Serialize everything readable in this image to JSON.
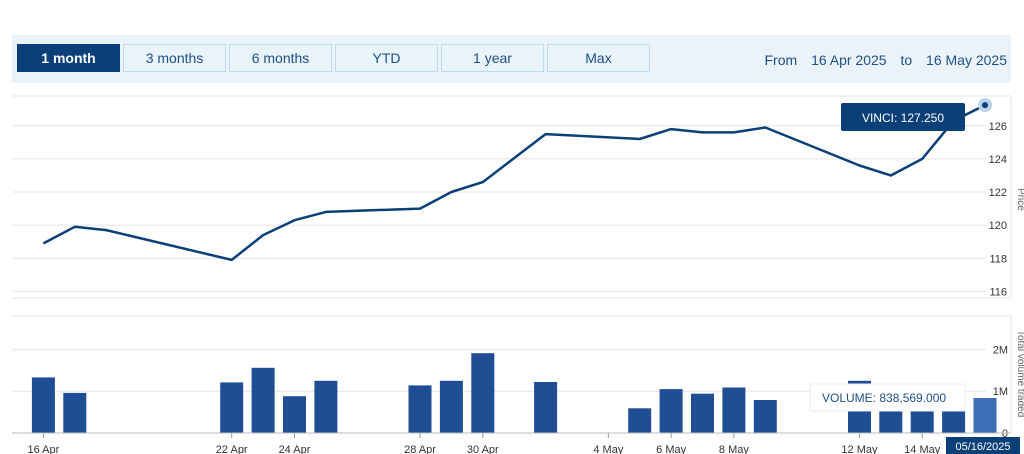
{
  "toolbar": {
    "ranges": [
      "1 month",
      "3 months",
      "6 months",
      "YTD",
      "1 year",
      "Max"
    ],
    "active_range": "1 month",
    "from_label": "From",
    "from_date": "16 Apr 2025",
    "to_label": "to",
    "to_date": "16 May 2025"
  },
  "colors": {
    "line": "#0b3f78",
    "bar": "#1f4e94",
    "bar_highlight": "#3d6fb8",
    "accent_dark": "#0b3f78"
  },
  "chart_data": {
    "type": "line",
    "price_series": {
      "name": "VINCI",
      "dates": [
        "2025-04-16",
        "2025-04-17",
        "2025-04-18",
        "2025-04-22",
        "2025-04-23",
        "2025-04-24",
        "2025-04-25",
        "2025-04-28",
        "2025-04-29",
        "2025-04-30",
        "2025-05-02",
        "2025-05-05",
        "2025-05-06",
        "2025-05-07",
        "2025-05-08",
        "2025-05-09",
        "2025-05-12",
        "2025-05-13",
        "2025-05-14",
        "2025-05-15",
        "2025-05-16"
      ],
      "values": [
        118.9,
        119.9,
        119.7,
        117.9,
        119.4,
        120.3,
        120.8,
        121.0,
        122.0,
        122.6,
        125.5,
        125.2,
        125.8,
        125.6,
        125.6,
        125.9,
        123.6,
        123.0,
        124.0,
        126.3,
        127.25
      ],
      "y_ticks": [
        116,
        118,
        120,
        122,
        124,
        126
      ],
      "ylim": [
        115.6,
        127.8
      ],
      "ylabel": "Price"
    },
    "volume_series": {
      "dates": [
        "2025-04-16",
        "2025-04-17",
        "2025-04-22",
        "2025-04-23",
        "2025-04-24",
        "2025-04-25",
        "2025-04-28",
        "2025-04-29",
        "2025-04-30",
        "2025-05-02",
        "2025-05-05",
        "2025-05-06",
        "2025-05-07",
        "2025-05-08",
        "2025-05-09",
        "2025-05-12",
        "2025-05-13",
        "2025-05-14",
        "2025-05-15",
        "2025-05-16"
      ],
      "values": [
        1330000,
        960000,
        1210000,
        1560000,
        880000,
        1250000,
        1140000,
        1250000,
        1910000,
        1220000,
        590000,
        1050000,
        940000,
        1090000,
        790000,
        1250000,
        790000,
        790000,
        790000,
        838569
      ],
      "y_ticks": [
        0,
        1000000,
        2000000
      ],
      "y_tick_labels": [
        "0",
        "1M",
        "2M"
      ],
      "ylim": [
        0,
        2800000
      ],
      "ylabel": "Total volume traded"
    },
    "x_ticks": [
      "2025-04-16",
      "2025-04-22",
      "2025-04-24",
      "2025-04-28",
      "2025-04-30",
      "2025-05-04",
      "2025-05-06",
      "2025-05-08",
      "2025-05-12",
      "2025-05-14"
    ],
    "x_tick_labels": [
      "16 Apr",
      "22 Apr",
      "24 Apr",
      "28 Apr",
      "30 Apr",
      "4 May",
      "6 May",
      "8 May",
      "12 May",
      "14 May"
    ],
    "x_range": [
      "2025-04-15",
      "2025-05-16"
    ],
    "crosshair_label": "05/16/2025",
    "tooltip_price": {
      "label": "VINCI:",
      "value": "127.250"
    },
    "tooltip_volume": {
      "label": "VOLUME:",
      "value": "838,569.000"
    }
  }
}
